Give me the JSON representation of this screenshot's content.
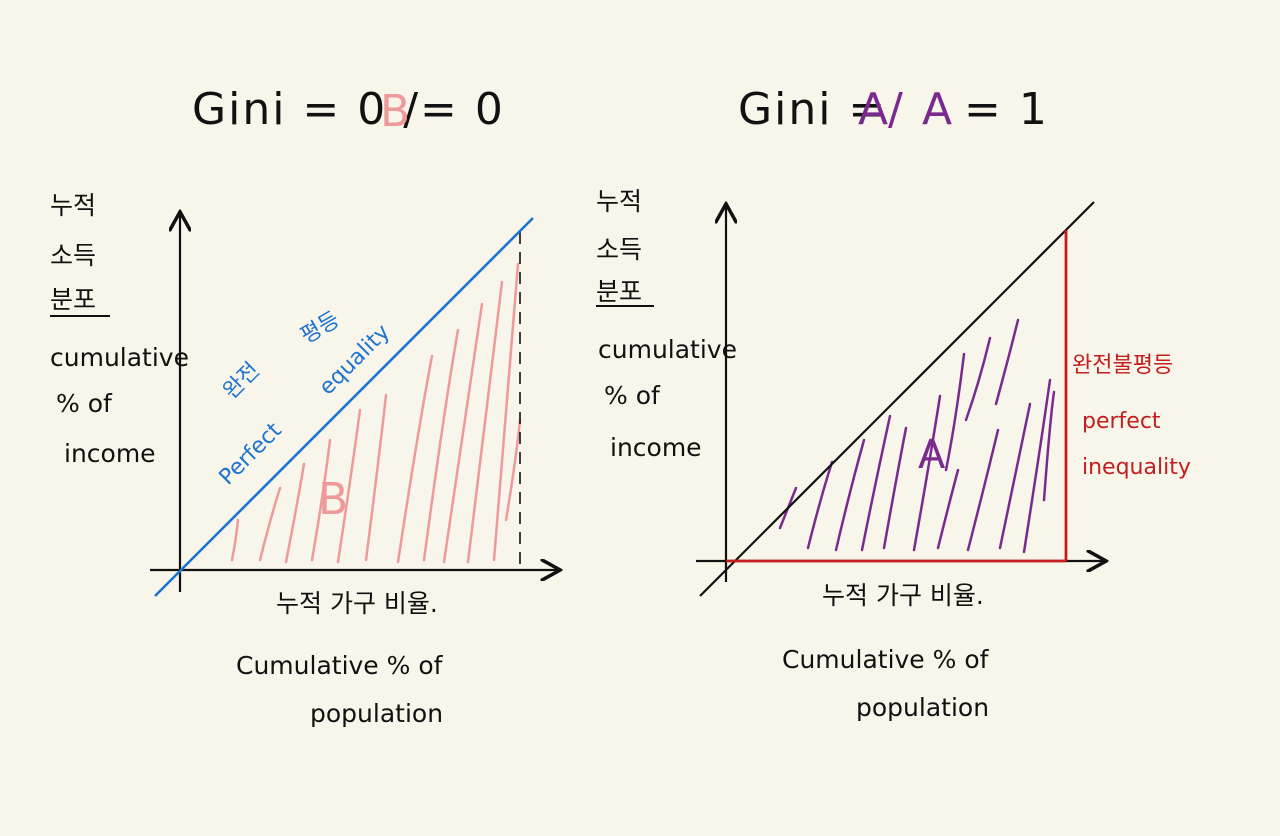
{
  "colors": {
    "background": "#f8f6ea",
    "ink": "#111111",
    "equality_line": "#1f74d0",
    "area_b": "#ee9a9a",
    "area_a": "#7a2a8e",
    "inequality_line": "#c41d1d"
  },
  "left": {
    "title_prefix": "Gini = 0 /",
    "title_symbol": "B",
    "title_suffix": "= 0",
    "y_label_ko": [
      "누적",
      "소득",
      "분포"
    ],
    "y_label_en": [
      "cumulative",
      "% of",
      "income"
    ],
    "x_label_ko": "누적 가구 비율.",
    "x_label_en": [
      "Cumulative % of",
      "population"
    ],
    "line_label_ko": [
      "완전",
      "평등"
    ],
    "line_label_en": [
      "Perfect",
      "equality"
    ],
    "area_label": "B"
  },
  "right": {
    "title_prefix": "Gini =",
    "title_symbol_1": "A",
    "title_slash": "/",
    "title_symbol_2": "A",
    "title_suffix": "= 1",
    "y_label_ko": [
      "누적",
      "소득",
      "분포"
    ],
    "y_label_en": [
      "cumulative",
      "% of",
      "income"
    ],
    "x_label_ko": "누적 가구 비율.",
    "x_label_en": [
      "Cumulative % of",
      "population"
    ],
    "area_label": "A",
    "line_label_ko": "완전불평등",
    "line_label_en": [
      "perfect",
      "inequality"
    ]
  }
}
